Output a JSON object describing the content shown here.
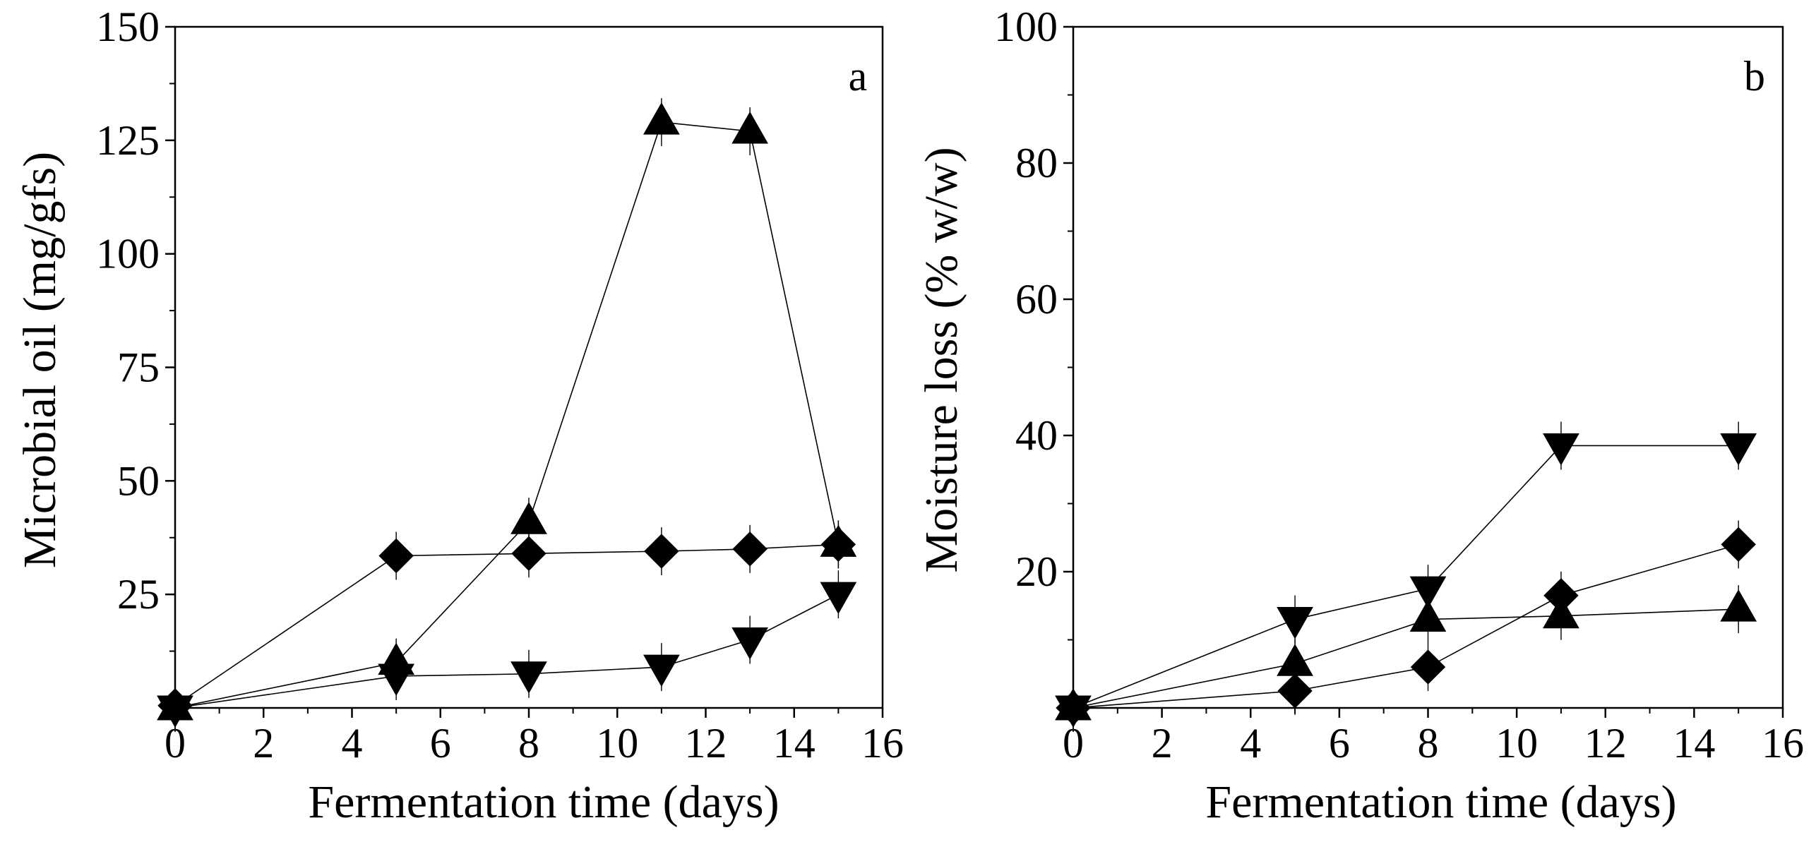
{
  "chart_data": [
    {
      "type": "line",
      "panel_label": "a",
      "xlabel": "Fermentation time (days)",
      "ylabel": "Microbial oil (mg/gfs)",
      "xlim": [
        0,
        16
      ],
      "ylim": [
        0,
        150
      ],
      "xticks": [
        0,
        2,
        4,
        6,
        8,
        10,
        12,
        14,
        16
      ],
      "yticks": [
        25,
        50,
        75,
        100,
        125,
        150
      ],
      "series": [
        {
          "name": "diamond",
          "marker": "diamond",
          "x": [
            0,
            5,
            8,
            11,
            13,
            15
          ],
          "y": [
            0.5,
            33.5,
            34,
            34.5,
            35,
            36
          ]
        },
        {
          "name": "triangle-up",
          "marker": "triangle-up",
          "x": [
            0,
            5,
            8,
            11,
            13,
            15
          ],
          "y": [
            0,
            10,
            41,
            129,
            127,
            36
          ]
        },
        {
          "name": "triangle-down",
          "marker": "triangle-down",
          "x": [
            0,
            5,
            8,
            11,
            13,
            15
          ],
          "y": [
            0,
            7,
            7.5,
            9,
            15,
            25
          ]
        }
      ]
    },
    {
      "type": "line",
      "panel_label": "b",
      "xlabel": "Fermentation time (days)",
      "ylabel": "Moisture loss (% w/w)",
      "xlim": [
        0,
        16
      ],
      "ylim": [
        0,
        100
      ],
      "xticks": [
        0,
        2,
        4,
        6,
        8,
        10,
        12,
        14,
        16
      ],
      "yticks": [
        20,
        40,
        60,
        80,
        100
      ],
      "series": [
        {
          "name": "diamond",
          "marker": "diamond",
          "x": [
            0,
            5,
            8,
            11,
            15
          ],
          "y": [
            0,
            2.5,
            6,
            16.5,
            24
          ]
        },
        {
          "name": "triangle-up",
          "marker": "triangle-up",
          "x": [
            0,
            5,
            8,
            11,
            15
          ],
          "y": [
            0,
            6.5,
            13,
            13.5,
            14.5
          ]
        },
        {
          "name": "triangle-down",
          "marker": "triangle-down",
          "x": [
            0,
            5,
            8,
            11,
            15
          ],
          "y": [
            0,
            13,
            17.5,
            38.5,
            38.5
          ]
        }
      ]
    }
  ]
}
